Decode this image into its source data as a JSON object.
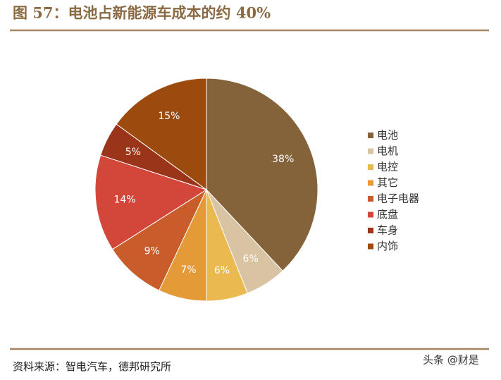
{
  "chart_data": {
    "type": "pie",
    "title": "图 57：电池占新能源车成本的约 40%",
    "categories": [
      "电池",
      "电机",
      "电控",
      "其它",
      "电子电器",
      "底盘",
      "车身",
      "内饰"
    ],
    "values": [
      38,
      6,
      6,
      7,
      9,
      14,
      5,
      15
    ],
    "value_labels": [
      "38%",
      "6%",
      "6%",
      "7%",
      "9%",
      "14%",
      "5%",
      "15%"
    ],
    "colors": [
      "#84623a",
      "#d8c4a2",
      "#eab94f",
      "#e59a38",
      "#c85d2b",
      "#d3463a",
      "#9b3519",
      "#9d4a0f"
    ],
    "legend": "right",
    "source": "资料来源：智电汽车，德邦研究所",
    "watermark": "头条 @财是"
  }
}
